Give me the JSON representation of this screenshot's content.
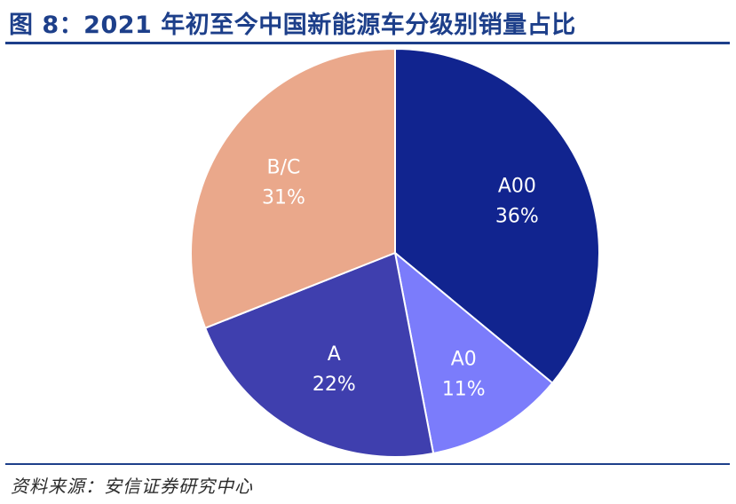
{
  "header": {
    "title": "图 8：2021 年初至今中国新能源车分级别销量占比"
  },
  "footer": {
    "source": "资料来源：安信证券研究中心"
  },
  "chart_data": {
    "type": "pie",
    "categories": [
      "A00",
      "A0",
      "A",
      "B/C"
    ],
    "values": [
      36,
      11,
      22,
      31
    ],
    "value_labels": [
      "36%",
      "11%",
      "22%",
      "31%"
    ],
    "colors": [
      "#11248f",
      "#7b7cfb",
      "#3f3fae",
      "#eaa88b"
    ],
    "start_angle": 0,
    "direction": "clockwise",
    "legend": "none"
  }
}
